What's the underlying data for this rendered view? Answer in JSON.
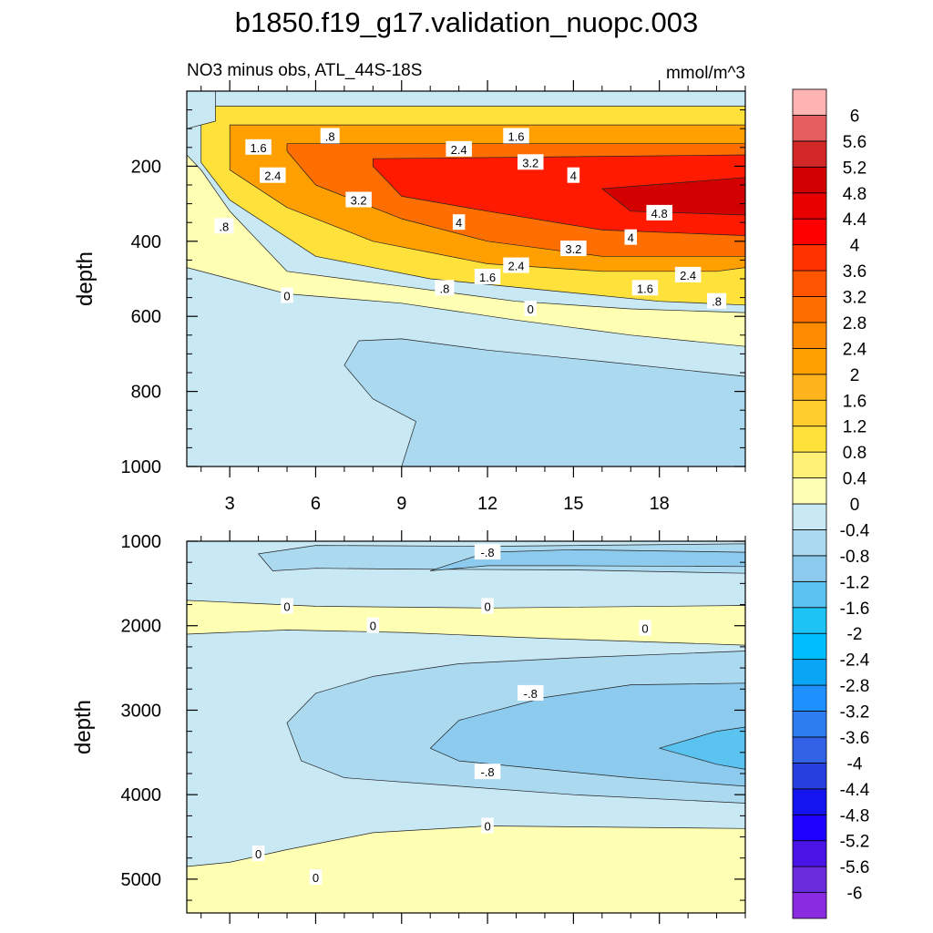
{
  "figure": {
    "title": "b1850.f19_g17.validation_nuopc.003",
    "subtitle_left": "NO3 minus obs, ATL_44S-18S",
    "subtitle_right": "mmol/m^3"
  },
  "colorbar": {
    "colors": [
      "#8a2be2",
      "#6a2bdc",
      "#4b14e6",
      "#1e00ff",
      "#1414ee",
      "#2840e0",
      "#3263e6",
      "#2d7df0",
      "#1e90ff",
      "#0aa5f5",
      "#00bfff",
      "#1ec3f5",
      "#5ac3f0",
      "#8ccbee",
      "#aad9f0",
      "#c8e8f4",
      "#ffffb4",
      "#fff078",
      "#ffe13c",
      "#ffcd2d",
      "#ffb41e",
      "#ffa000",
      "#ff8c00",
      "#ff6e00",
      "#ff5500",
      "#ff3200",
      "#ff0000",
      "#e60000",
      "#d20000",
      "#d22828",
      "#e65f5f",
      "#ffb4b4"
    ],
    "labels": [
      "-6",
      "-5.6",
      "-5.2",
      "-4.8",
      "-4.4",
      "-4",
      "-3.6",
      "-3.2",
      "-2.8",
      "-2.4",
      "-2",
      "-1.6",
      "-1.2",
      "-0.8",
      "-0.4",
      "0",
      "0.4",
      "0.8",
      "1.2",
      "1.6",
      "2",
      "2.4",
      "2.8",
      "3.2",
      "3.6",
      "4",
      "4.4",
      "4.8",
      "5.2",
      "5.6",
      "6"
    ]
  },
  "chart_data": [
    {
      "type": "heatmap",
      "panel": "upper",
      "title": "NO3 minus obs, ATL_44S-18S",
      "units": "mmol/m^3",
      "xlabel": "",
      "ylabel": "depth",
      "xlim": [
        1.5,
        21
      ],
      "ylim": [
        1000,
        0
      ],
      "xticks": [
        3,
        6,
        9,
        12,
        15,
        18
      ],
      "yticks": [
        200,
        400,
        600,
        800,
        1000
      ],
      "regions": [
        {
          "level": "0 to 0.4",
          "color": "#ffffb4",
          "points": [
            [
              1.5,
              170
            ],
            [
              2,
              210
            ],
            [
              3,
              320
            ],
            [
              5,
              480
            ],
            [
              9,
              520
            ],
            [
              13,
              560
            ],
            [
              17,
              580
            ],
            [
              21,
              590
            ],
            [
              21,
              680
            ],
            [
              17,
              650
            ],
            [
              13,
              610
            ],
            [
              9,
              565
            ],
            [
              5,
              540
            ],
            [
              3,
              500
            ],
            [
              1.5,
              470
            ]
          ]
        },
        {
          "level": "0.4 to 1.2",
          "color": "#ffe13c",
          "points": [
            [
              2,
              100
            ],
            [
              2,
              190
            ],
            [
              3,
              290
            ],
            [
              6,
              440
            ],
            [
              10,
              500
            ],
            [
              14,
              530
            ],
            [
              18,
              560
            ],
            [
              21,
              570
            ],
            [
              21,
              40
            ],
            [
              2,
              40
            ]
          ]
        },
        {
          "level": "1.2 to 2.4",
          "color": "#ffa000",
          "points": [
            [
              3,
              110
            ],
            [
              3,
              210
            ],
            [
              5,
              310
            ],
            [
              8,
              400
            ],
            [
              12,
              460
            ],
            [
              16,
              480
            ],
            [
              20,
              480
            ],
            [
              21,
              470
            ],
            [
              21,
              90
            ],
            [
              3,
              90
            ]
          ]
        },
        {
          "level": "2.4 to 3.6",
          "color": "#ff6e00",
          "points": [
            [
              5,
              160
            ],
            [
              6,
              250
            ],
            [
              9,
              340
            ],
            [
              12,
              400
            ],
            [
              16,
              440
            ],
            [
              21,
              440
            ],
            [
              21,
              140
            ],
            [
              5,
              140
            ]
          ]
        },
        {
          "level": "3.6 to 4.4",
          "color": "#ff1a00",
          "points": [
            [
              8,
              200
            ],
            [
              9,
              280
            ],
            [
              12,
              320
            ],
            [
              16,
              370
            ],
            [
              21,
              385
            ],
            [
              21,
              170
            ],
            [
              8,
              180
            ]
          ]
        },
        {
          "level": "4.4 to 5.2",
          "color": "#d20000",
          "points": [
            [
              16,
              260
            ],
            [
              17,
              320
            ],
            [
              21,
              330
            ],
            [
              21,
              230
            ]
          ]
        },
        {
          "level": "-0.4 to 0",
          "color": "#c8e8f4",
          "points": [
            [
              1.5,
              0
            ],
            [
              1.5,
              100
            ],
            [
              2.5,
              80
            ],
            [
              2.5,
              0
            ]
          ]
        },
        {
          "level": "-0.8 to -0.4",
          "color": "#aad9f0",
          "points": [
            [
              7.5,
              665
            ],
            [
              9,
              660
            ],
            [
              12,
              690
            ],
            [
              16,
              720
            ],
            [
              21,
              760
            ],
            [
              21,
              1000
            ],
            [
              9,
              1000
            ],
            [
              9.5,
              880
            ],
            [
              8,
              820
            ],
            [
              7,
              730
            ]
          ]
        }
      ],
      "contour_labels": [
        {
          "x": 6.5,
          "y": 120,
          "text": ".8"
        },
        {
          "x": 4,
          "y": 150,
          "text": "1.6"
        },
        {
          "x": 13,
          "y": 120,
          "text": "1.6"
        },
        {
          "x": 11,
          "y": 155,
          "text": "2.4"
        },
        {
          "x": 13.5,
          "y": 190,
          "text": "3.2"
        },
        {
          "x": 15,
          "y": 225,
          "text": "4"
        },
        {
          "x": 4.5,
          "y": 225,
          "text": "2.4"
        },
        {
          "x": 7.5,
          "y": 290,
          "text": "3.2"
        },
        {
          "x": 2.8,
          "y": 360,
          "text": ".8"
        },
        {
          "x": 11,
          "y": 350,
          "text": "4"
        },
        {
          "x": 18,
          "y": 325,
          "text": "4.8"
        },
        {
          "x": 17,
          "y": 390,
          "text": "4"
        },
        {
          "x": 15,
          "y": 420,
          "text": "3.2"
        },
        {
          "x": 13,
          "y": 465,
          "text": "2.4"
        },
        {
          "x": 12,
          "y": 495,
          "text": "1.6"
        },
        {
          "x": 19,
          "y": 490,
          "text": "2.4"
        },
        {
          "x": 10.5,
          "y": 525,
          "text": ".8"
        },
        {
          "x": 17.5,
          "y": 525,
          "text": "1.6"
        },
        {
          "x": 5,
          "y": 545,
          "text": "0"
        },
        {
          "x": 13.5,
          "y": 580,
          "text": "0"
        },
        {
          "x": 20,
          "y": 560,
          "text": ".8"
        }
      ]
    },
    {
      "type": "heatmap",
      "panel": "lower",
      "xlabel": "",
      "ylabel": "depth",
      "xlim": [
        1.5,
        21
      ],
      "ylim": [
        5400,
        1000
      ],
      "yticks": [
        1000,
        2000,
        3000,
        4000,
        5000
      ],
      "regions": [
        {
          "level": "-0.4 to 0",
          "color": "#c8e8f4",
          "points": [
            [
              1.5,
              1000
            ],
            [
              21,
              1000
            ],
            [
              21,
              5400
            ],
            [
              1.5,
              5400
            ]
          ]
        },
        {
          "level": "0 to 0.4",
          "color": "#ffffb4",
          "points": [
            [
              1.5,
              1700
            ],
            [
              6,
              1770
            ],
            [
              12,
              1790
            ],
            [
              21,
              1760
            ],
            [
              21,
              2230
            ],
            [
              14,
              2150
            ],
            [
              9,
              2080
            ],
            [
              5,
              2050
            ],
            [
              1.5,
              2100
            ]
          ]
        },
        {
          "level": "0 to 0.4",
          "color": "#ffffb4",
          "points": [
            [
              1.5,
              4850
            ],
            [
              3,
              4800
            ],
            [
              5,
              4650
            ],
            [
              8,
              4450
            ],
            [
              12,
              4370
            ],
            [
              21,
              4400
            ],
            [
              21,
              5400
            ],
            [
              1.5,
              5400
            ]
          ]
        },
        {
          "level": "-0.8 to -0.4",
          "color": "#aad9f0",
          "points": [
            [
              4,
              1150
            ],
            [
              6,
              1050
            ],
            [
              12,
              1060
            ],
            [
              21,
              1030
            ],
            [
              21,
              1380
            ],
            [
              15,
              1340
            ],
            [
              9,
              1330
            ],
            [
              6,
              1320
            ],
            [
              4.5,
              1350
            ]
          ]
        },
        {
          "level": "-0.8 to -0.4",
          "color": "#aad9f0",
          "points": [
            [
              5,
              3150
            ],
            [
              6,
              2800
            ],
            [
              8,
              2600
            ],
            [
              11,
              2450
            ],
            [
              15,
              2380
            ],
            [
              21,
              2300
            ],
            [
              21,
              4100
            ],
            [
              15,
              4000
            ],
            [
              11,
              3900
            ],
            [
              7,
              3800
            ],
            [
              5.5,
              3600
            ]
          ]
        },
        {
          "level": "-1.2 to -0.8",
          "color": "#8ccbee",
          "points": [
            [
              10,
              1350
            ],
            [
              12,
              1130
            ],
            [
              15,
              1100
            ],
            [
              21,
              1130
            ],
            [
              21,
              1300
            ],
            [
              15,
              1290
            ],
            [
              12,
              1290
            ]
          ]
        },
        {
          "level": "-1.2 to -0.8",
          "color": "#8ccbee",
          "points": [
            [
              10,
              3450
            ],
            [
              11,
              3120
            ],
            [
              14,
              2850
            ],
            [
              17,
              2700
            ],
            [
              21,
              2680
            ],
            [
              21,
              3900
            ],
            [
              17,
              3800
            ],
            [
              14,
              3700
            ],
            [
              11,
              3600
            ]
          ]
        },
        {
          "level": "-1.6 to -1.2",
          "color": "#5ac3f0",
          "points": [
            [
              18,
              3450
            ],
            [
              20,
              3250
            ],
            [
              21,
              3200
            ],
            [
              21,
              3700
            ],
            [
              20,
              3640
            ]
          ]
        }
      ],
      "contour_labels": [
        {
          "x": 12,
          "y": 1130,
          "text": "-.8"
        },
        {
          "x": 5,
          "y": 1770,
          "text": "0"
        },
        {
          "x": 12,
          "y": 1770,
          "text": "0"
        },
        {
          "x": 8,
          "y": 2000,
          "text": "0"
        },
        {
          "x": 17.5,
          "y": 2030,
          "text": "0"
        },
        {
          "x": 13.5,
          "y": 2800,
          "text": "-.8"
        },
        {
          "x": 12,
          "y": 3730,
          "text": "-.8"
        },
        {
          "x": 12,
          "y": 4370,
          "text": "0"
        },
        {
          "x": 4,
          "y": 4700,
          "text": "0"
        },
        {
          "x": 6,
          "y": 4980,
          "text": "0"
        }
      ]
    }
  ]
}
